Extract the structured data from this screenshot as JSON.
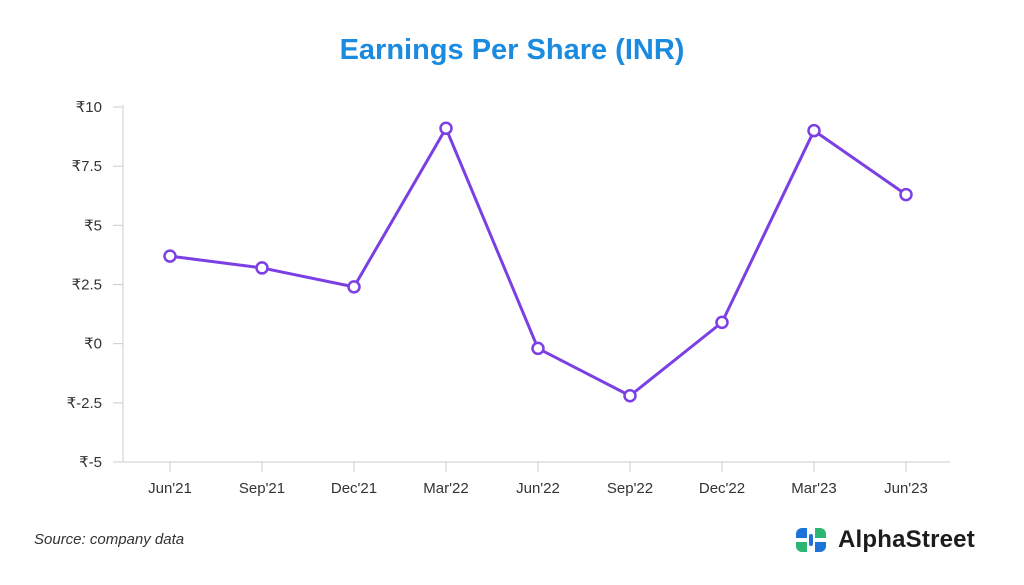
{
  "chart_data": {
    "type": "line",
    "title": "Earnings Per Share (INR)",
    "categories": [
      "Jun'21",
      "Sep'21",
      "Dec'21",
      "Mar'22",
      "Jun'22",
      "Sep'22",
      "Dec'22",
      "Mar'23",
      "Jun'23"
    ],
    "series": [
      {
        "values": [
          3.7,
          3.2,
          2.4,
          9.1,
          -0.2,
          -2.2,
          0.9,
          9.0,
          6.3
        ]
      }
    ],
    "yticks": [
      10,
      7.5,
      5,
      2.5,
      0,
      -2.5,
      -5
    ],
    "ytick_labels": [
      "₹10",
      "₹7.5",
      "₹5",
      "₹2.5",
      "₹0",
      "₹-2.5",
      "₹-5"
    ],
    "ylim": [
      -5,
      10
    ],
    "grid": false,
    "line_color": "#7b3fe4",
    "title_color": "#1b8be0"
  },
  "footer": {
    "source": "Source: company data",
    "brand": "AlphaStreet",
    "brand_icon": "alphastreet-logo-icon"
  }
}
